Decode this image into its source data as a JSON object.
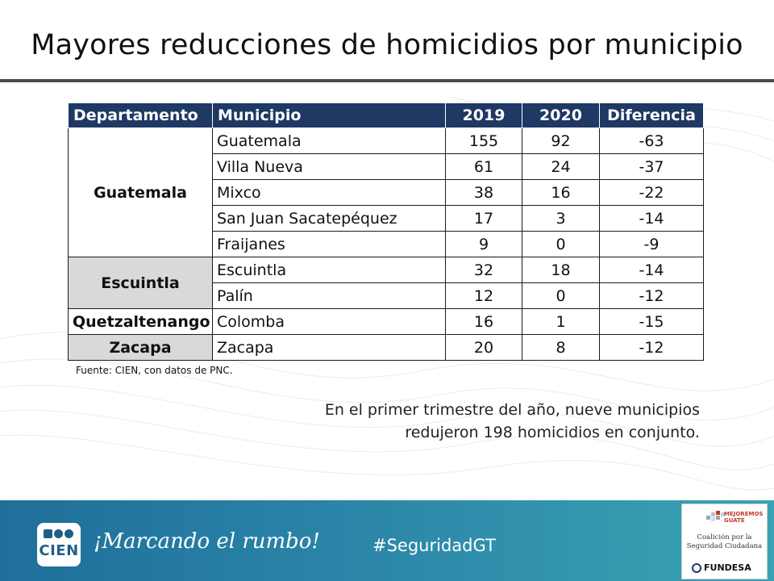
{
  "title": "Mayores reducciones de homicidios por municipio",
  "table": {
    "headers": [
      "Departamento",
      "Municipio",
      "2019",
      "2020",
      "Diferencia"
    ],
    "groups": [
      {
        "departamento": "Guatemala",
        "rows": [
          {
            "municipio": "Guatemala",
            "y2019": "155",
            "y2020": "92",
            "diferencia": "-63"
          },
          {
            "municipio": "Villa Nueva",
            "y2019": "61",
            "y2020": "24",
            "diferencia": "-37"
          },
          {
            "municipio": "Mixco",
            "y2019": "38",
            "y2020": "16",
            "diferencia": "-22"
          },
          {
            "municipio": "San Juan Sacatepéquez",
            "y2019": "17",
            "y2020": "3",
            "diferencia": "-14"
          },
          {
            "municipio": "Fraijanes",
            "y2019": "9",
            "y2020": "0",
            "diferencia": "-9"
          }
        ]
      },
      {
        "departamento": "Escuintla",
        "rows": [
          {
            "municipio": "Escuintla",
            "y2019": "32",
            "y2020": "18",
            "diferencia": "-14"
          },
          {
            "municipio": "Palín",
            "y2019": "12",
            "y2020": "0",
            "diferencia": "-12"
          }
        ]
      },
      {
        "departamento": "Quetzaltenango",
        "rows": [
          {
            "municipio": "Colomba",
            "y2019": "16",
            "y2020": "1",
            "diferencia": "-15"
          }
        ]
      },
      {
        "departamento": "Zacapa",
        "rows": [
          {
            "municipio": "Zacapa",
            "y2019": "20",
            "y2020": "8",
            "diferencia": "-12"
          }
        ]
      }
    ]
  },
  "source": "Fuente: CIEN, con datos de PNC.",
  "note": {
    "line1": "En el primer trimestre del año, nueve municipios",
    "line2": "redujeron 198 homicidios en conjunto."
  },
  "footer": {
    "logo": "CIEN",
    "slogan": "¡Marcando el rumbo!",
    "hashtag": "#SeguridadGT",
    "partner": {
      "mejoremos": "MEJOREMOS GUATE",
      "coalicion_line1": "Coalición por la",
      "coalicion_line2": "Seguridad Ciudadana",
      "fundesa": "FUNDESA"
    }
  },
  "colors": {
    "header_bg": "#1f3864",
    "shade": "#d9d9d9",
    "footer_start": "#1f6f9a",
    "footer_end": "#3aa3b3"
  }
}
